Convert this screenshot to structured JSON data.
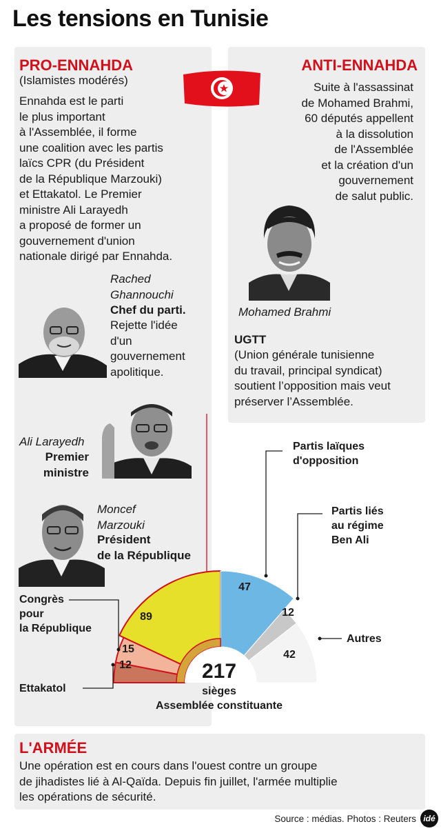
{
  "title": "Les tensions en Tunisie",
  "pro": {
    "heading": "PRO-ENNAHDA",
    "subheading": "(Islamistes modérés)",
    "text": "Ennahda est le parti\nle plus important\nà l'Assemblée, il forme\nune coalition avec les partis\nlaïcs CPR (du Président\nde la République Marzouki)\net Ettakatol. Le Premier\nministre Ali Larayedh\na proposé de former un\ngouvernement d'union\nnationale dirigé par Ennahda.",
    "people": [
      {
        "name": "Rached\nGhannouchi",
        "role": "Chef du parti.",
        "note": "Rejette l'idée\nd'un\ngouvernement\napolitique."
      },
      {
        "name": "Ali Larayedh",
        "role": "Premier\nministre"
      },
      {
        "name": "Moncef\nMarzouki",
        "role": "Président\nde la République"
      }
    ]
  },
  "anti": {
    "heading": "ANTI-ENNAHDA",
    "text": "Suite à l'assassinat\nde Mohamed Brahmi,\n60 députés appellent\nà la dissolution\nde l'Assemblée\net la création d'un\ngouvernement\nde salut public.",
    "photo_caption": "Mohamed Brahmi",
    "ugtt_heading": "UGTT",
    "ugtt_text": "(Union générale tunisienne\ndu travail, principal syndicat)\nsoutient l’opposition mais veut\npréserver l’Assemblée."
  },
  "colors": {
    "red": "#d0111b",
    "panel": "#eeeeee",
    "ennahda": "#e7e02a",
    "cpr": "#f2b49a",
    "ettakatol": "#c9765c",
    "opposition": "#6db7e4",
    "ben_ali": "#c8c8c8",
    "autres": "#f4f4f4"
  },
  "chart_data": {
    "type": "pie",
    "subtype": "semicircle parliament",
    "total": 217,
    "total_label": "sièges",
    "caption": "Assemblée constituante",
    "segments": [
      {
        "name": "Ettakatol",
        "value": 12,
        "color": "#c9765c"
      },
      {
        "name": "Congrès\npour\nla République",
        "value": 15,
        "color": "#f2b49a"
      },
      {
        "name": "Ennahda",
        "value": 89,
        "color": "#e7e02a"
      },
      {
        "name": "Partis laïques\nd'opposition",
        "value": 47,
        "color": "#6db7e4"
      },
      {
        "name": "Partis liés\nau régime\nBen Ali",
        "value": 12,
        "color": "#c8c8c8"
      },
      {
        "name": "Autres",
        "value": 42,
        "color": "#f4f4f4"
      }
    ]
  },
  "army": {
    "heading": "L'ARMÉE",
    "text": "Une opération est en cours dans l'ouest contre un groupe\nde jihadistes lié à Al-Qaïda. Depuis fin juillet, l'armée multiplie\nles opérations de sécurité."
  },
  "footer": {
    "source": "Source : médias. Photos : Reuters",
    "logo": "idé"
  }
}
